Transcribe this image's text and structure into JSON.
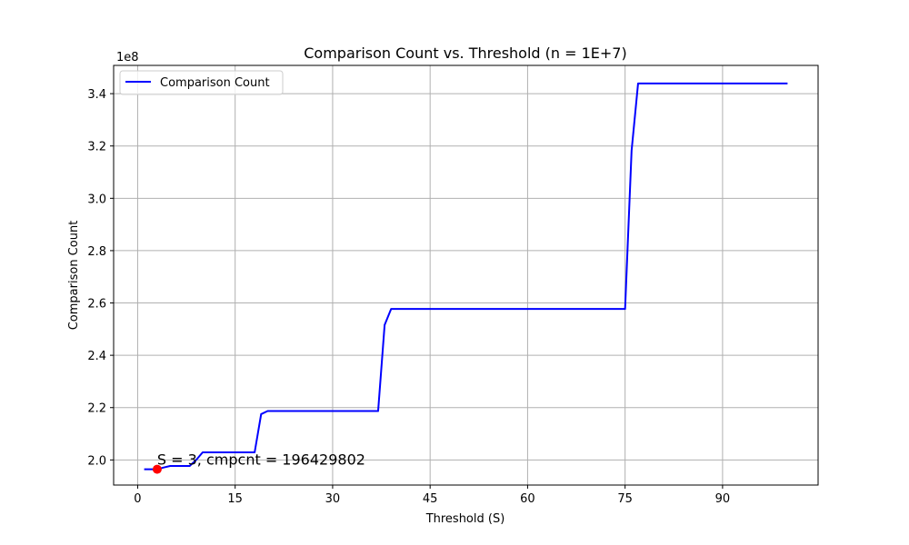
{
  "chart_data": {
    "type": "line",
    "title": "Comparison Count vs. Threshold (n = 1E+7)",
    "xlabel": "Threshold (S)",
    "ylabel": "Comparison Count",
    "y_offset_label": "1e8",
    "y_scale": 100000000,
    "xlim": [
      -3.7,
      104.7
    ],
    "ylim": [
      190400000,
      350800000
    ],
    "xticks": [
      0,
      15,
      30,
      45,
      60,
      75,
      90
    ],
    "yticks": [
      2.0,
      2.2,
      2.4,
      2.6,
      2.8,
      3.0,
      3.2,
      3.4
    ],
    "grid": true,
    "legend_position": "top-left",
    "series": [
      {
        "name": "Comparison Count",
        "color": "#0000ff",
        "x": [
          1,
          2,
          3,
          4,
          5,
          6,
          7,
          8,
          9,
          10,
          11,
          12,
          13,
          14,
          15,
          16,
          17,
          18,
          19,
          20,
          21,
          22,
          23,
          24,
          25,
          26,
          27,
          28,
          29,
          30,
          31,
          32,
          33,
          34,
          35,
          36,
          37,
          38,
          39,
          40,
          45,
          50,
          55,
          60,
          65,
          70,
          75,
          76,
          77,
          80,
          85,
          90,
          95,
          100
        ],
        "y": [
          196429802,
          196429802,
          196429802,
          197100000,
          197700000,
          197700000,
          197700000,
          197700000,
          200000000,
          202900000,
          202900000,
          202900000,
          202900000,
          202900000,
          202900000,
          202900000,
          202900000,
          202900000,
          217500000,
          218700000,
          218700000,
          218700000,
          218700000,
          218700000,
          218700000,
          218700000,
          218700000,
          218700000,
          218700000,
          218700000,
          218700000,
          218700000,
          218700000,
          218700000,
          218700000,
          218700000,
          218700000,
          251600000,
          257700000,
          257700000,
          257700000,
          257700000,
          257700000,
          257700000,
          257700000,
          257700000,
          257700000,
          318200000,
          343900000,
          343900000,
          343900000,
          343900000,
          343900000,
          343900000
        ]
      }
    ],
    "highlight": {
      "x": 3,
      "y": 196429802,
      "color": "#ff0000",
      "label": "S = 3, cmpcnt = 196429802"
    }
  }
}
